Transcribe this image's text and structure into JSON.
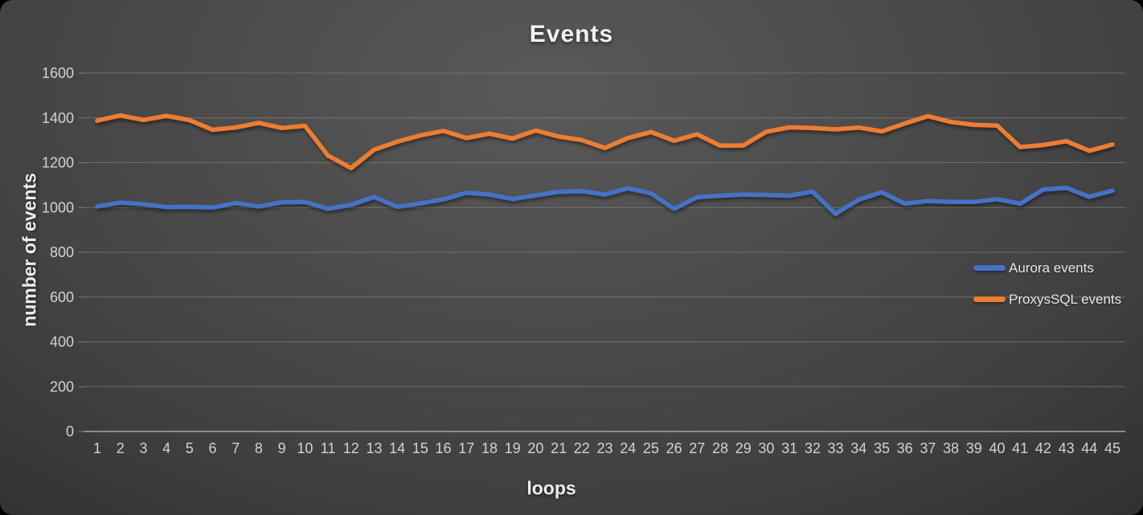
{
  "chart_data": {
    "type": "line",
    "title": "Events",
    "xlabel": "loops",
    "ylabel": "number of events",
    "x": [
      1,
      2,
      3,
      4,
      5,
      6,
      7,
      8,
      9,
      10,
      11,
      12,
      13,
      14,
      15,
      16,
      17,
      18,
      19,
      20,
      21,
      22,
      23,
      24,
      25,
      26,
      27,
      28,
      29,
      30,
      31,
      32,
      33,
      34,
      35,
      36,
      37,
      38,
      39,
      40,
      41,
      42,
      43,
      44,
      45
    ],
    "yticks": [
      0,
      200,
      400,
      600,
      800,
      1000,
      1200,
      1400,
      1600
    ],
    "ylim": [
      0,
      1600
    ],
    "grid": true,
    "legend_position": "right",
    "series": [
      {
        "name": "Aurora events",
        "color": "#4472C4",
        "values": [
          1005,
          1022,
          1015,
          1002,
          1003,
          1000,
          1020,
          1005,
          1023,
          1025,
          994,
          1012,
          1047,
          1003,
          1018,
          1036,
          1066,
          1058,
          1038,
          1054,
          1070,
          1073,
          1058,
          1086,
          1063,
          994,
          1046,
          1053,
          1058,
          1056,
          1053,
          1071,
          972,
          1035,
          1068,
          1017,
          1029,
          1025,
          1025,
          1037,
          1017,
          1080,
          1088,
          1048,
          1075
        ]
      },
      {
        "name": "ProxysSQL events",
        "color": "#ED7D31",
        "values": [
          1388,
          1411,
          1391,
          1409,
          1390,
          1347,
          1357,
          1378,
          1355,
          1365,
          1232,
          1176,
          1258,
          1294,
          1322,
          1342,
          1310,
          1330,
          1308,
          1344,
          1317,
          1301,
          1266,
          1310,
          1337,
          1298,
          1327,
          1276,
          1277,
          1338,
          1358,
          1355,
          1349,
          1357,
          1340,
          1375,
          1408,
          1382,
          1369,
          1366,
          1270,
          1279,
          1296,
          1253,
          1281
        ]
      }
    ]
  },
  "theme": {
    "gridline_color": "#8f8f8f",
    "axis_line_color": "#a6a6a6",
    "tick_label_color": "#d2d2d2",
    "title_color": "#f2f2f2"
  }
}
